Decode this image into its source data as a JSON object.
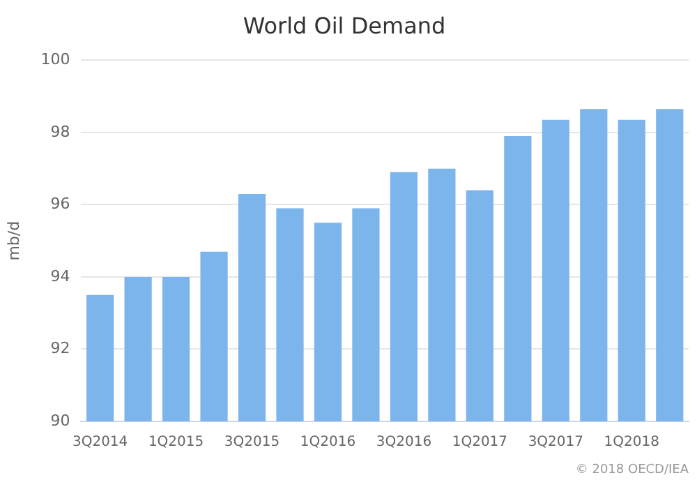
{
  "chart_data": {
    "type": "bar",
    "title": "World Oil Demand",
    "ylabel": "mb/d",
    "categories": [
      "3Q2014",
      null,
      "1Q2015",
      null,
      "3Q2015",
      null,
      "1Q2016",
      null,
      "3Q2016",
      null,
      "1Q2017",
      null,
      "3Q2017",
      null,
      "1Q2018",
      null
    ],
    "values": [
      93.5,
      94.0,
      94.0,
      94.7,
      96.3,
      95.9,
      95.5,
      95.9,
      96.9,
      97.0,
      96.4,
      97.9,
      98.35,
      98.65,
      98.35,
      98.65
    ],
    "color": "#7cb5ec",
    "ylim": [
      90,
      100
    ],
    "yticks": [
      90,
      92,
      94,
      96,
      98,
      100
    ],
    "grid": "y",
    "annotations": [
      "© 2018 OECD/IEA"
    ]
  }
}
